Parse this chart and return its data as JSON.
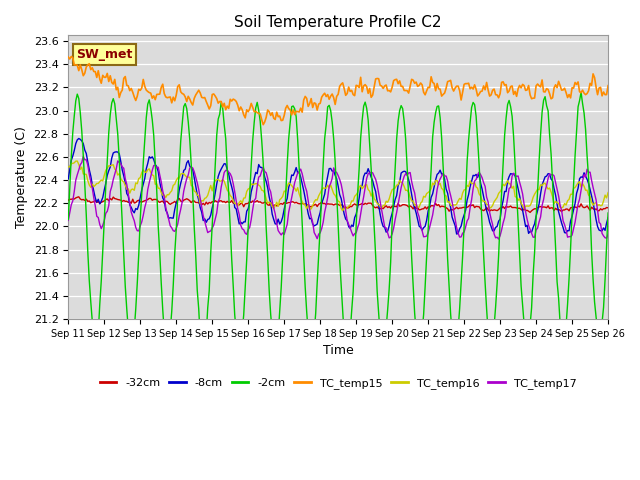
{
  "title": "Soil Temperature Profile C2",
  "xlabel": "Time",
  "ylabel": "Temperature (C)",
  "ylim": [
    21.2,
    23.65
  ],
  "xlim": [
    0,
    360
  ],
  "plot_bg_color": "#dcdcdc",
  "series": {
    "TC_temp15": {
      "color": "#FF8C00",
      "linewidth": 1.2
    },
    "TC_temp16": {
      "color": "#cccc00",
      "linewidth": 1.0
    },
    "TC_temp17": {
      "color": "#aa00cc",
      "linewidth": 1.0
    },
    "neg2cm": {
      "color": "#00cc00",
      "linewidth": 1.0
    },
    "neg8cm": {
      "color": "#0000cc",
      "linewidth": 1.0
    },
    "neg32cm": {
      "color": "#cc0000",
      "linewidth": 1.0
    }
  },
  "legend_labels": [
    "-32cm",
    "-8cm",
    "-2cm",
    "TC_temp15",
    "TC_temp16",
    "TC_temp17"
  ],
  "legend_colors": [
    "#cc0000",
    "#0000cc",
    "#00cc00",
    "#FF8C00",
    "#cccc00",
    "#aa00cc"
  ],
  "sw_met_label": "SW_met",
  "sw_met_text_color": "#8B0000",
  "sw_met_bg_color": "#FFFF99",
  "sw_met_border_color": "#8B6914",
  "num_points": 361,
  "tick_labels": [
    "Sep 11",
    "Sep 12",
    "Sep 13",
    "Sep 14",
    "Sep 15",
    "Sep 16",
    "Sep 17",
    "Sep 18",
    "Sep 19",
    "Sep 20",
    "Sep 21",
    "Sep 22",
    "Sep 23",
    "Sep 24",
    "Sep 25",
    "Sep 26"
  ],
  "tick_positions": [
    0,
    24,
    48,
    72,
    96,
    120,
    144,
    168,
    192,
    216,
    240,
    264,
    288,
    312,
    336,
    360
  ],
  "yticks": [
    21.2,
    21.4,
    21.6,
    21.8,
    22.0,
    22.2,
    22.4,
    22.6,
    22.8,
    23.0,
    23.2,
    23.4,
    23.6
  ]
}
